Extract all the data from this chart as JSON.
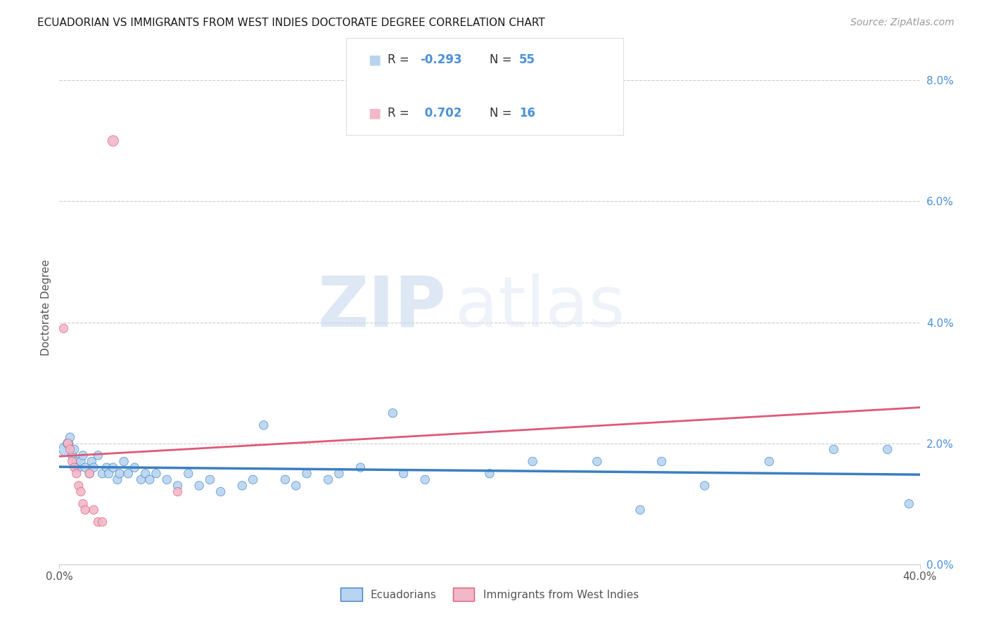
{
  "title": "ECUADORIAN VS IMMIGRANTS FROM WEST INDIES DOCTORATE DEGREE CORRELATION CHART",
  "source": "Source: ZipAtlas.com",
  "ylabel": "Doctorate Degree",
  "watermark_zip": "ZIP",
  "watermark_atlas": "atlas",
  "blue_color": "#b8d4f0",
  "pink_color": "#f0b8c8",
  "blue_line_color": "#3a7fc1",
  "pink_line_color": "#e05878",
  "legend_r1_label": "R = ",
  "legend_r1_val": "-0.293",
  "legend_n1_label": "N = ",
  "legend_n1_val": "55",
  "legend_r2_label": "R =  ",
  "legend_r2_val": "0.702",
  "legend_n2_label": "N = ",
  "legend_n2_val": "16",
  "blue_scatter_x": [
    0.3,
    0.4,
    0.5,
    0.6,
    0.7,
    0.8,
    0.9,
    1.0,
    1.1,
    1.2,
    1.4,
    1.5,
    1.6,
    1.8,
    2.0,
    2.2,
    2.3,
    2.5,
    2.7,
    2.8,
    3.0,
    3.2,
    3.5,
    3.8,
    4.0,
    4.2,
    4.5,
    5.0,
    5.5,
    6.0,
    6.5,
    7.0,
    7.5,
    8.5,
    9.0,
    9.5,
    10.5,
    11.0,
    11.5,
    12.5,
    13.0,
    14.0,
    15.5,
    16.0,
    17.0,
    20.0,
    22.0,
    25.0,
    27.0,
    28.0,
    30.0,
    33.0,
    36.0,
    38.5,
    39.5
  ],
  "blue_scatter_y": [
    1.9,
    2.0,
    2.1,
    1.8,
    1.9,
    1.7,
    1.6,
    1.7,
    1.8,
    1.6,
    1.5,
    1.7,
    1.6,
    1.8,
    1.5,
    1.6,
    1.5,
    1.6,
    1.4,
    1.5,
    1.7,
    1.5,
    1.6,
    1.4,
    1.5,
    1.4,
    1.5,
    1.4,
    1.3,
    1.5,
    1.3,
    1.4,
    1.2,
    1.3,
    1.4,
    2.3,
    1.4,
    1.3,
    1.5,
    1.4,
    1.5,
    1.6,
    2.5,
    1.5,
    1.4,
    1.5,
    1.7,
    1.7,
    0.9,
    1.7,
    1.3,
    1.7,
    1.9,
    1.9,
    1.0
  ],
  "blue_scatter_s": [
    200,
    100,
    80,
    80,
    80,
    80,
    80,
    80,
    80,
    80,
    80,
    80,
    80,
    80,
    80,
    80,
    80,
    80,
    80,
    80,
    80,
    80,
    80,
    80,
    80,
    80,
    80,
    80,
    80,
    80,
    80,
    80,
    80,
    80,
    80,
    80,
    80,
    80,
    80,
    80,
    80,
    80,
    80,
    80,
    80,
    80,
    80,
    80,
    80,
    80,
    80,
    80,
    80,
    80,
    80
  ],
  "pink_scatter_x": [
    0.2,
    0.4,
    0.5,
    0.6,
    0.7,
    0.8,
    0.9,
    1.0,
    1.1,
    1.2,
    1.4,
    1.6,
    1.8,
    2.0,
    2.5,
    5.5
  ],
  "pink_scatter_y": [
    3.9,
    2.0,
    1.9,
    1.7,
    1.6,
    1.5,
    1.3,
    1.2,
    1.0,
    0.9,
    1.5,
    0.9,
    0.7,
    0.7,
    7.0,
    1.2
  ],
  "pink_scatter_s": [
    80,
    80,
    80,
    80,
    80,
    80,
    80,
    80,
    80,
    80,
    80,
    80,
    80,
    80,
    120,
    80
  ],
  "xmin": 0.0,
  "xmax": 40.0,
  "ymin": 0.0,
  "ymax": 8.5,
  "ytick_vals": [
    0.0,
    2.0,
    4.0,
    6.0,
    8.0
  ],
  "ytick_labels": [
    "0.0%",
    "2.0%",
    "4.0%",
    "6.0%",
    "8.0%"
  ],
  "xtick_vals": [
    0.0,
    40.0
  ],
  "xtick_labels": [
    "0.0%",
    "40.0%"
  ],
  "grid_color": "#cccccc",
  "title_fontsize": 11,
  "source_fontsize": 10,
  "tick_fontsize": 11,
  "ylabel_fontsize": 11
}
